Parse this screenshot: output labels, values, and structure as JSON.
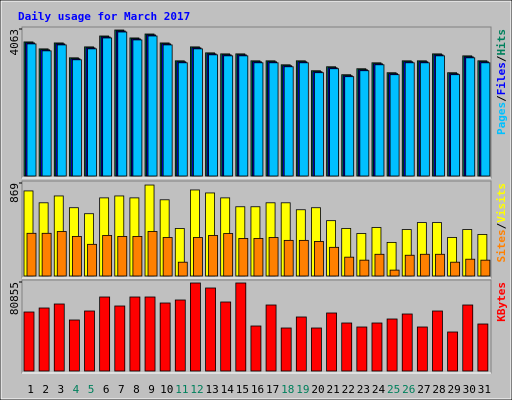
{
  "chart_data": [
    {
      "type": "bar",
      "title": "Daily usage for March 2017",
      "ylim": [
        0,
        4063
      ],
      "yticks": [
        4063
      ],
      "legend_separator": "/",
      "series": [
        {
          "name": "Hits",
          "color": "#00805c",
          "values": [
            3706,
            3514,
            3678,
            3267,
            3569,
            3870,
            4035,
            3816,
            3925,
            3678,
            3184,
            3569,
            3404,
            3376,
            3376,
            3184,
            3184,
            3074,
            3184,
            2910,
            3020,
            2800,
            2965,
            3129,
            2855,
            3184,
            3184,
            3376,
            2855,
            3321,
            3184
          ]
        },
        {
          "name": "Files",
          "color": "#0000ff",
          "values": [
            3679,
            3487,
            3651,
            3240,
            3542,
            3843,
            4008,
            3789,
            3898,
            3651,
            3157,
            3542,
            3377,
            3349,
            3349,
            3157,
            3157,
            3047,
            3157,
            2883,
            2993,
            2773,
            2938,
            3102,
            2828,
            3157,
            3157,
            3349,
            2828,
            3294,
            3157
          ]
        },
        {
          "name": "Pages",
          "color": "#00c0ff",
          "values": [
            3651,
            3459,
            3623,
            3212,
            3514,
            3815,
            3980,
            3761,
            3870,
            3623,
            3129,
            3514,
            3349,
            3321,
            3321,
            3129,
            3129,
            3019,
            3129,
            2855,
            2965,
            2745,
            2910,
            3074,
            2800,
            3129,
            3129,
            3321,
            2800,
            3266,
            3129
          ]
        }
      ]
    },
    {
      "type": "bar",
      "ylim": [
        0,
        869
      ],
      "yticks": [
        869
      ],
      "legend_separator": "/",
      "series": [
        {
          "name": "Visits",
          "color": "#ffff00",
          "values": [
            795,
            684,
            748,
            638,
            582,
            730,
            748,
            730,
            850,
            712,
            444,
            804,
            776,
            730,
            647,
            647,
            684,
            684,
            619,
            638,
            517,
            444,
            397,
            453,
            314,
            434,
            499,
            499,
            360,
            434,
            388
          ]
        },
        {
          "name": "Sites",
          "color": "#ff8000",
          "values": [
            399,
            399,
            416,
            370,
            296,
            379,
            370,
            370,
            416,
            360,
            129,
            360,
            379,
            397,
            351,
            351,
            360,
            333,
            333,
            323,
            268,
            176,
            148,
            203,
            55,
            194,
            203,
            203,
            129,
            157,
            148
          ]
        }
      ]
    },
    {
      "type": "bar",
      "ylim": [
        0,
        80855
      ],
      "yticks": [
        80855
      ],
      "categories": [
        "1",
        "2",
        "3",
        "4",
        "5",
        "6",
        "7",
        "8",
        "9",
        "10",
        "11",
        "12",
        "13",
        "14",
        "15",
        "16",
        "17",
        "18",
        "19",
        "20",
        "21",
        "22",
        "23",
        "24",
        "25",
        "26",
        "27",
        "28",
        "29",
        "30",
        "31"
      ],
      "category_colors": [
        "#000000",
        "#000000",
        "#000000",
        "#00805c",
        "#00805c",
        "#000000",
        "#000000",
        "#000000",
        "#000000",
        "#000000",
        "#00805c",
        "#00805c",
        "#000000",
        "#000000",
        "#000000",
        "#000000",
        "#000000",
        "#00805c",
        "#00805c",
        "#000000",
        "#000000",
        "#000000",
        "#000000",
        "#000000",
        "#00805c",
        "#00805c",
        "#000000",
        "#000000",
        "#000000",
        "#000000",
        "#000000"
      ],
      "series": [
        {
          "name": "KBytes",
          "color": "#ff0000",
          "values": [
            53602,
            57236,
            60870,
            46334,
            54510,
            67229,
            59053,
            67229,
            67229,
            61778,
            64504,
            79947,
            75405,
            62687,
            79947,
            40883,
            59961,
            39066,
            49069,
            39066,
            52694,
            43608,
            39975,
            43608,
            47242,
            51786,
            39975,
            54510,
            35432,
            59961,
            42700
          ]
        }
      ]
    }
  ]
}
